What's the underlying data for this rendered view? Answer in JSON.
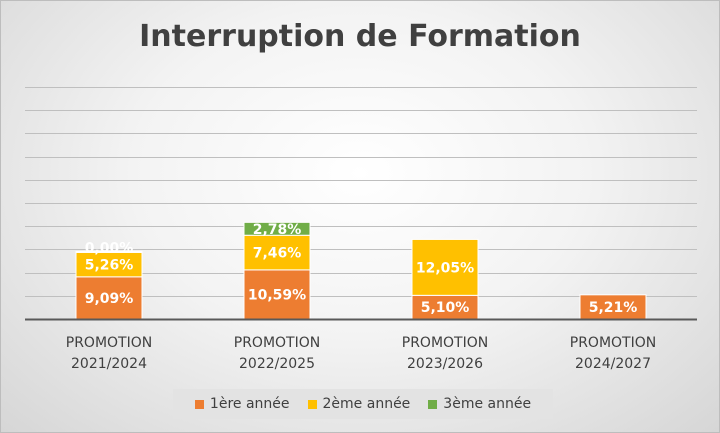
{
  "chart_data": {
    "type": "bar",
    "stacked": true,
    "title": "Interruption de Formation",
    "categories": [
      [
        "PROMOTION",
        "2021/2024"
      ],
      [
        "PROMOTION",
        "2022/2025"
      ],
      [
        "PROMOTION",
        "2023/2026"
      ],
      [
        "PROMOTION",
        "2024/2027"
      ]
    ],
    "series": [
      {
        "name": "1ère année",
        "color": "#ed7d31",
        "values": [
          9.09,
          10.59,
          5.1,
          5.21
        ],
        "labels": [
          "9,09%",
          "10,59%",
          "5,10%",
          "5,21%"
        ]
      },
      {
        "name": "2ème année",
        "color": "#ffc000",
        "values": [
          5.26,
          7.46,
          12.05,
          null
        ],
        "labels": [
          "5,26%",
          "7,46%",
          "12,05%",
          ""
        ]
      },
      {
        "name": "3ème année",
        "color": "#70ad47",
        "values": [
          0.0,
          2.78,
          null,
          null
        ],
        "labels": [
          "0,00%",
          "2,78%",
          "",
          ""
        ]
      }
    ],
    "ylim": [
      0,
      50
    ],
    "grid": true,
    "legend_position": "bottom"
  }
}
